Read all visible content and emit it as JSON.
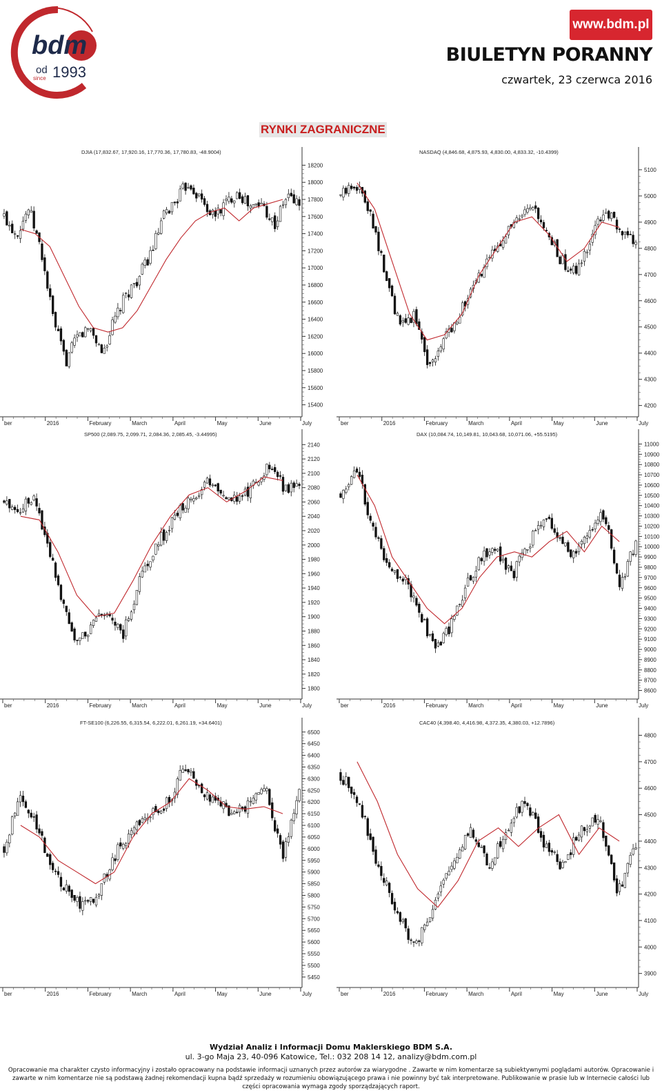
{
  "header": {
    "logo_brand": "bdm",
    "logo_od": "od",
    "logo_since": "since",
    "logo_year": "1993",
    "url": "www.bdm.pl",
    "title": "BIULETYN PORANNY",
    "date": "czwartek, 23 czerwca 2016",
    "accent_color": "#d7262f"
  },
  "section_title": "RYNKI ZAGRANICZNE",
  "footer": {
    "line1": "Wydział Analiz i Informacji Domu Maklerskiego BDM  S.A.",
    "line2": "ul. 3-go Maja 23, 40-096 Katowice, Tel.: 032 208 14 12, analizy@bdm.com.pl",
    "disclaimer": "Opracowanie  ma charakter czysto informacyjny i zostało opracowany na podstawie informacji uznanych przez autorów za wiarygodne . Zawarte w nim komentarze są subiektywnymi poglądami autorów. Opracowanie i zawarte w nim komentarze nie są podstawą żadnej rekomendacji kupna bądź sprzedaży w rozumieniu obowiązującego prawa i nie powinny być tak interpretowane. Publikowanie w prasie lub w Internecie całości lub części opracowania wymaga zgody sporządzających raport."
  },
  "chart_data": [
    {
      "type": "candlestick",
      "title": "DJIA (17,832.67, 17,920.16, 17,770.36, 17,780.83, -48.9004)",
      "x_labels": [
        "ber",
        "2016",
        "February",
        "March",
        "April",
        "May",
        "June",
        "July"
      ],
      "y_ticks": [
        15400,
        15600,
        15800,
        16000,
        16200,
        16400,
        16600,
        16800,
        17000,
        17200,
        17400,
        17600,
        17800,
        18000,
        18200
      ],
      "ylim": [
        15300,
        18300
      ],
      "series": [
        {
          "name": "close",
          "values": [
            17600,
            17400,
            17700,
            17200,
            16400,
            15900,
            16200,
            16300,
            16000,
            16400,
            16700,
            16900,
            17200,
            17600,
            17800,
            18000,
            17800,
            17600,
            17750,
            17900,
            17700,
            17750,
            17500,
            17850,
            17750
          ]
        },
        {
          "name": "moving average",
          "values": [
            17450,
            17400,
            17250,
            16900,
            16550,
            16300,
            16250,
            16300,
            16500,
            16800,
            17100,
            17350,
            17550,
            17650,
            17700,
            17550,
            17700,
            17750,
            17800
          ]
        }
      ],
      "ma_color": "#c0282d"
    },
    {
      "type": "candlestick",
      "title": "NASDAQ (4,846.68, 4,875.93, 4,830.00, 4,833.32, -10.4399)",
      "x_labels": [
        "ber",
        "2016",
        "February",
        "March",
        "April",
        "May",
        "June",
        "July"
      ],
      "y_ticks": [
        4200,
        4300,
        4400,
        4500,
        4600,
        4700,
        4800,
        4900,
        5000,
        5100
      ],
      "ylim": [
        4170,
        5150
      ],
      "series": [
        {
          "name": "close",
          "values": [
            5000,
            5050,
            4950,
            4700,
            4500,
            4550,
            4350,
            4450,
            4550,
            4650,
            4750,
            4850,
            4900,
            4950,
            4850,
            4750,
            4700,
            4850,
            4950,
            4850,
            4830
          ]
        },
        {
          "name": "moving average",
          "values": [
            5050,
            4950,
            4750,
            4550,
            4450,
            4470,
            4550,
            4700,
            4800,
            4900,
            4920,
            4850,
            4750,
            4800,
            4900,
            4880
          ]
        }
      ],
      "ma_color": "#c0282d"
    },
    {
      "type": "candlestick",
      "title": "SP500 (2,089.75, 2,099.71, 2,084.36, 2,085.45, -3.44995)",
      "x_labels": [
        "ber",
        "2016",
        "February",
        "March",
        "April",
        "May",
        "June",
        "July"
      ],
      "y_ticks": [
        1800,
        1820,
        1840,
        1860,
        1880,
        1900,
        1920,
        1940,
        1960,
        1980,
        2000,
        2020,
        2040,
        2060,
        2080,
        2100,
        2120,
        2140
      ],
      "ylim": [
        1790,
        2148
      ],
      "series": [
        {
          "name": "close",
          "values": [
            2060,
            2050,
            2070,
            2000,
            1920,
            1860,
            1890,
            1910,
            1870,
            1940,
            1990,
            2020,
            2050,
            2070,
            2090,
            2070,
            2060,
            2090,
            2110,
            2080,
            2085
          ]
        },
        {
          "name": "moving average",
          "values": [
            2040,
            2035,
            1990,
            1930,
            1900,
            1905,
            1950,
            2000,
            2040,
            2070,
            2080,
            2060,
            2075,
            2095,
            2090
          ]
        }
      ],
      "ma_color": "#c0282d"
    },
    {
      "type": "candlestick",
      "title": "DAX (10,084.74, 10,149.81, 10,043.68, 10,071.06, +55.5195)",
      "x_labels": [
        "ber",
        "2016",
        "February",
        "March",
        "April",
        "May",
        "June",
        "July"
      ],
      "y_ticks": [
        8600,
        8700,
        8800,
        8900,
        9000,
        9100,
        9200,
        9300,
        9400,
        9500,
        9600,
        9700,
        9800,
        9900,
        10000,
        10100,
        10200,
        10300,
        10400,
        10500,
        10600,
        10700,
        10800,
        10900,
        11000
      ],
      "ylim": [
        8550,
        11050
      ],
      "series": [
        {
          "name": "close",
          "values": [
            10500,
            10800,
            10200,
            9800,
            9700,
            9400,
            9000,
            9200,
            9600,
            9900,
            10000,
            9700,
            10000,
            10300,
            10100,
            9900,
            10200,
            10300,
            9600,
            10071
          ]
        },
        {
          "name": "moving average",
          "values": [
            10700,
            10400,
            9900,
            9650,
            9400,
            9250,
            9400,
            9700,
            9900,
            9950,
            9900,
            10050,
            10150,
            9950,
            10200,
            10050
          ]
        }
      ],
      "ma_color": "#c0282d"
    },
    {
      "type": "candlestick",
      "title": "FT-SE100 (6,226.55, 6,315.54, 6,222.01, 6,261.19, +34.6401)",
      "x_labels": [
        "ber",
        "2016",
        "February",
        "March",
        "April",
        "May",
        "June",
        "July"
      ],
      "y_ticks": [
        5450,
        5500,
        5550,
        5600,
        5650,
        5700,
        5750,
        5800,
        5850,
        5900,
        5950,
        6000,
        6050,
        6100,
        6150,
        6200,
        6250,
        6300,
        6350,
        6400,
        6450,
        6500
      ],
      "ylim": [
        5420,
        6520
      ],
      "series": [
        {
          "name": "close",
          "values": [
            6000,
            6250,
            6100,
            5900,
            5800,
            5750,
            5850,
            6000,
            6100,
            6150,
            6200,
            6350,
            6250,
            6200,
            6150,
            6200,
            6250,
            5950,
            6261
          ]
        },
        {
          "name": "moving average",
          "values": [
            6100,
            6050,
            5950,
            5900,
            5850,
            5900,
            6050,
            6150,
            6200,
            6300,
            6250,
            6180,
            6170,
            6180,
            6150
          ]
        }
      ],
      "ma_color": "#c0282d"
    },
    {
      "type": "candlestick",
      "title": "CAC40 (4,398.40, 4,416.98, 4,372.35, 4,380.03, +12.7896)",
      "x_labels": [
        "ber",
        "2016",
        "February",
        "March",
        "April",
        "May",
        "June",
        "July"
      ],
      "y_ticks": [
        3900,
        4000,
        4100,
        4200,
        4300,
        4400,
        4500,
        4600,
        4700,
        4800
      ],
      "ylim": [
        3860,
        4830
      ],
      "series": [
        {
          "name": "close",
          "values": [
            4650,
            4550,
            4300,
            4150,
            4000,
            4150,
            4300,
            4450,
            4300,
            4450,
            4550,
            4400,
            4300,
            4450,
            4500,
            4200,
            4380
          ]
        },
        {
          "name": "moving average",
          "values": [
            4700,
            4550,
            4350,
            4220,
            4150,
            4250,
            4400,
            4450,
            4380,
            4450,
            4500,
            4350,
            4450,
            4400
          ]
        }
      ],
      "ma_color": "#c0282d"
    }
  ]
}
